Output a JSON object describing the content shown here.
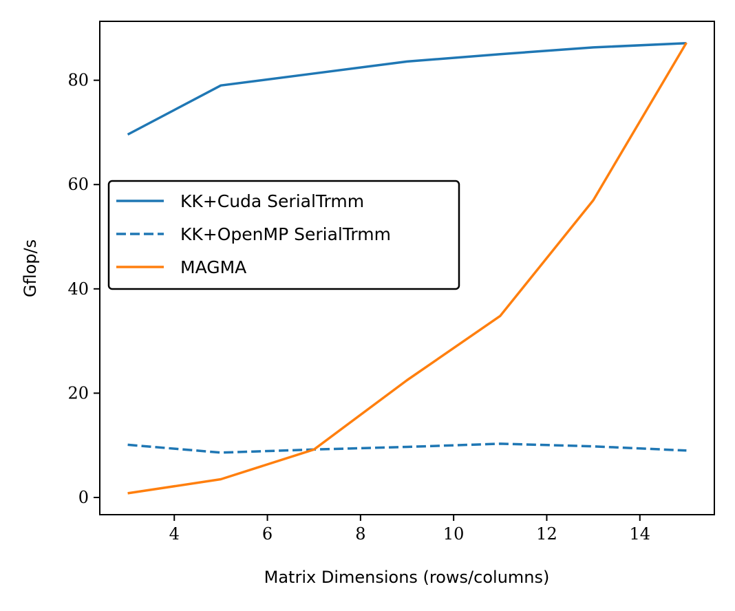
{
  "chart_data": {
    "type": "line",
    "title": "",
    "xlabel": "Matrix Dimensions (rows/columns)",
    "ylabel": "Gflop/s",
    "xlim": [
      2.4,
      15.6
    ],
    "ylim": [
      -3.3,
      91.3
    ],
    "xticks": [
      4,
      6,
      8,
      10,
      12,
      14
    ],
    "yticks": [
      0,
      20,
      40,
      60,
      80
    ],
    "grid": false,
    "legend_position": "center-left",
    "x": [
      3,
      5,
      7,
      9,
      11,
      13,
      15
    ],
    "series": [
      {
        "name": "KK+Cuda SerialTrmm",
        "values": [
          69.6,
          79.0,
          81.3,
          83.6,
          85.0,
          86.3,
          87.1
        ],
        "color": "#1f77b4",
        "style": "solid"
      },
      {
        "name": "KK+OpenMP SerialTrmm",
        "values": [
          10.1,
          8.6,
          9.2,
          9.7,
          10.3,
          9.8,
          9.0
        ],
        "color": "#1f77b4",
        "style": "dashed"
      },
      {
        "name": "MAGMA",
        "values": [
          0.8,
          3.5,
          9.2,
          22.5,
          34.8,
          57.0,
          87.2
        ],
        "color": "#ff7f0e",
        "style": "solid"
      }
    ]
  }
}
